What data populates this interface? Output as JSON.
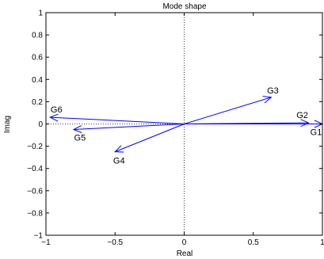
{
  "chart_data": {
    "type": "scatter",
    "title": "Mode shape",
    "xlabel": "Real",
    "ylabel": "Imag",
    "xlim": [
      -1,
      1
    ],
    "ylim": [
      -1,
      1
    ],
    "grid": false,
    "x_ticks": [
      -1,
      -0.5,
      0,
      0.5,
      1
    ],
    "x_tick_labels": [
      "−1",
      "−0.5",
      "0",
      "0.5",
      "1"
    ],
    "y_ticks": [
      -1,
      -0.8,
      -0.6,
      -0.4,
      -0.2,
      0,
      0.2,
      0.4,
      0.6,
      0.8,
      1
    ],
    "y_tick_labels": [
      "−1",
      "−0.8",
      "−0.6",
      "−0.4",
      "−0.2",
      "0",
      "0.2",
      "0.4",
      "0.6",
      "0.8",
      "1"
    ],
    "vectors": [
      {
        "label": "G1",
        "x": 1.0,
        "y": 0.0
      },
      {
        "label": "G2",
        "x": 0.9,
        "y": 0.01
      },
      {
        "label": "G3",
        "x": 0.63,
        "y": 0.24
      },
      {
        "label": "G4",
        "x": -0.5,
        "y": -0.25
      },
      {
        "label": "G5",
        "x": -0.8,
        "y": -0.05
      },
      {
        "label": "G6",
        "x": -0.97,
        "y": 0.06
      }
    ],
    "colors": {
      "vector": "#0000ff",
      "axes": "#000000",
      "zero_line": "#000000"
    }
  }
}
